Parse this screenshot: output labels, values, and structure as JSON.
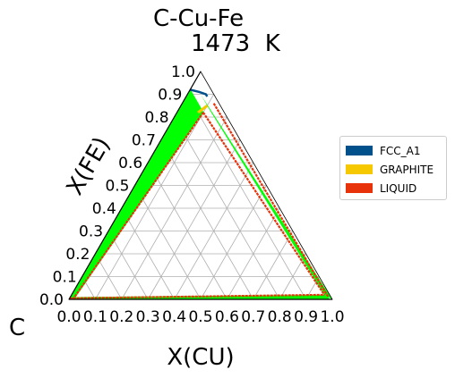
{
  "chart_data": {
    "type": "ternary-phase-diagram",
    "title": "C-Cu-Fe",
    "subtitle": "1473  K",
    "corner_left_label": "C",
    "xlabel": "X(CU)",
    "ylabel": "X(FE)",
    "x_ticks": [
      "0.0",
      "0.1",
      "0.2",
      "0.3",
      "0.4",
      "0.5",
      "0.6",
      "0.7",
      "0.8",
      "0.9",
      "1.0"
    ],
    "y_ticks": [
      "0.0",
      "0.1",
      "0.2",
      "0.3",
      "0.4",
      "0.5",
      "0.6",
      "0.7",
      "0.8",
      "0.9",
      "1.0"
    ],
    "xlim": [
      0,
      1
    ],
    "ylim": [
      0,
      1
    ],
    "grid": true,
    "legend_placement": "right",
    "legend": [
      {
        "name": "FCC_A1",
        "color": "#00508c"
      },
      {
        "name": "GRAPHITE",
        "color": "#f5c800"
      },
      {
        "name": "LIQUID",
        "color": "#e8320a"
      }
    ],
    "tie_line_color": "#00ff00",
    "boundary_color": "#e8320a",
    "regions": [
      {
        "name": "graphite-liquid band along C-Fe edge",
        "polygon": [
          [
            0,
            0
          ],
          [
            0.0,
            0.92
          ],
          [
            0.1,
            0.82
          ],
          [
            0.02,
            0
          ]
        ]
      },
      {
        "name": "liquid band along Fe-Cu edge",
        "polygon": [
          [
            0.05,
            0.9
          ],
          [
            0.12,
            0.83
          ],
          [
            0.96,
            0.02
          ],
          [
            1,
            0
          ]
        ]
      },
      {
        "name": "graphite-liquid band along C-Cu edge",
        "polygon": [
          [
            0,
            0
          ],
          [
            0.99,
            0
          ],
          [
            0.97,
            0.02
          ],
          [
            0,
            0.01
          ]
        ]
      }
    ],
    "phase_boundaries": [
      {
        "name": "left boundary",
        "points": [
          [
            0.015,
            0
          ],
          [
            0.1,
            0.82
          ]
        ]
      },
      {
        "name": "inner diagonal boundary",
        "points": [
          [
            0.1,
            0.82
          ],
          [
            0.96,
            0.02
          ]
        ]
      },
      {
        "name": "bottom boundary",
        "points": [
          [
            0,
            0.005
          ],
          [
            0.96,
            0.02
          ]
        ]
      },
      {
        "name": "outer diagonal boundary",
        "points": [
          [
            0.12,
            0.86
          ],
          [
            0.98,
            0.01
          ]
        ]
      }
    ],
    "fcc_boundary": [
      [
        0.0,
        0.92
      ],
      [
        0.04,
        0.91
      ],
      [
        0.07,
        0.9
      ],
      [
        0.08,
        0.89
      ]
    ]
  }
}
